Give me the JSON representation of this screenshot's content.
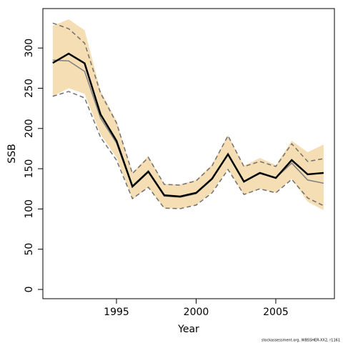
{
  "chart_data": {
    "type": "line",
    "x_label": "Year",
    "y_label": "SSB",
    "footnote": "stockassessment.org, WBSSHER-XX2, r1161",
    "x": [
      1991,
      1992,
      1993,
      1994,
      1995,
      1996,
      1997,
      1998,
      1999,
      2000,
      2001,
      2002,
      2003,
      2004,
      2005,
      2006,
      2007,
      2008
    ],
    "band": {
      "color": "#f5deb3",
      "upper": [
        327.7,
        335.7,
        322,
        247,
        209.6,
        145,
        166,
        131,
        130.5,
        136,
        155.4,
        191.8,
        153.6,
        163.4,
        154.5,
        184.7,
        170.5,
        180
      ],
      "lower": [
        240,
        250,
        243,
        192.7,
        164,
        112,
        127,
        101,
        100.4,
        104.8,
        120.8,
        150,
        117,
        125,
        120,
        137.6,
        109,
        98.6
      ]
    },
    "series": [
      {
        "color": "#707070",
        "dashed": true,
        "width": 1.5,
        "values": [
          331,
          324,
          306,
          244,
          207,
          144,
          164,
          130.5,
          129.7,
          135,
          153.6,
          191,
          152.8,
          159,
          152.8,
          181,
          159,
          162.5
        ]
      },
      {
        "color": "#707070",
        "dashed": true,
        "width": 1.5,
        "values": [
          240,
          246,
          238,
          189,
          160.7,
          112.8,
          127,
          101,
          100.4,
          104.8,
          120,
          149,
          118,
          125,
          120,
          136.8,
          113.7,
          104
        ]
      },
      {
        "color": "#808080",
        "dashed": false,
        "width": 1.5,
        "values": [
          285,
          284,
          271,
          213,
          182,
          127,
          145.6,
          116,
          114.6,
          119,
          136.8,
          168,
          134,
          144,
          138.5,
          157,
          136,
          132
        ]
      },
      {
        "color": "#000000",
        "dashed": false,
        "width": 2.5,
        "values": [
          281.5,
          293,
          281,
          217.6,
          184.7,
          128,
          146.5,
          117,
          115.5,
          120,
          137.6,
          168,
          134,
          144.8,
          138.5,
          160.7,
          143,
          144.8
        ]
      }
    ],
    "xlim": [
      1990.38,
      2008.68
    ],
    "ylim": [
      -11.5,
      349
    ],
    "xticks": [
      1995,
      2000,
      2005
    ],
    "yticks": [
      0,
      50,
      100,
      150,
      200,
      250,
      300
    ]
  }
}
